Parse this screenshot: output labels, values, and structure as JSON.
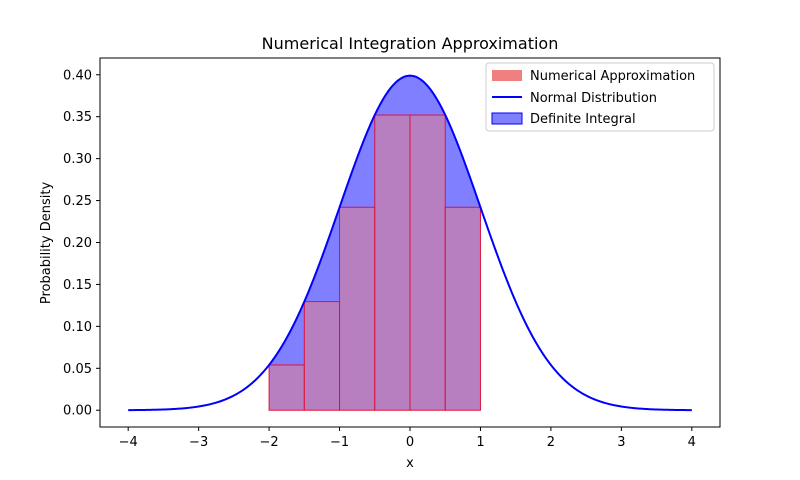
{
  "chart_data": {
    "type": "area",
    "title": "Numerical Integration Approximation",
    "xlabel": "x",
    "ylabel": "Probability Density",
    "xlim": [
      -4.4,
      4.4
    ],
    "ylim": [
      -0.02,
      0.42
    ],
    "xticks": [
      -4,
      -3,
      -2,
      -1,
      0,
      1,
      2,
      3,
      4
    ],
    "xtick_labels": [
      "−4",
      "−3",
      "−2",
      "−1",
      "0",
      "1",
      "2",
      "3",
      "4"
    ],
    "yticks": [
      0.0,
      0.05,
      0.1,
      0.15,
      0.2,
      0.25,
      0.3,
      0.35,
      0.4
    ],
    "ytick_labels": [
      "0.00",
      "0.05",
      "0.10",
      "0.15",
      "0.20",
      "0.25",
      "0.30",
      "0.35",
      "0.40"
    ],
    "grid": false,
    "legend_position": "top-right",
    "curve": {
      "name": "Normal Distribution",
      "function": "standard normal pdf",
      "x_range": [
        -4,
        4
      ],
      "color": "#0000ff"
    },
    "integral": {
      "name": "Definite Integral",
      "x_range": [
        -2,
        1
      ],
      "color": "#0000ff",
      "opacity": 0.5
    },
    "bars": {
      "name": "Numerical Approximation",
      "color": "#f08080",
      "edge_color": "#dc143c",
      "opacity": 0.5,
      "width": 0.5,
      "left_edges": [
        -2.0,
        -1.5,
        -1.0,
        -0.5,
        0.0,
        0.5
      ],
      "heights": [
        0.054,
        0.1295,
        0.242,
        0.352,
        0.352,
        0.242
      ]
    },
    "legend": [
      {
        "label": "Numerical Approximation",
        "kind": "patch",
        "color": "#f08080"
      },
      {
        "label": "Normal Distribution",
        "kind": "line",
        "color": "#0000ff"
      },
      {
        "label": "Definite Integral",
        "kind": "patch",
        "color": "#8080ff",
        "edge": "#0000ff"
      }
    ]
  }
}
